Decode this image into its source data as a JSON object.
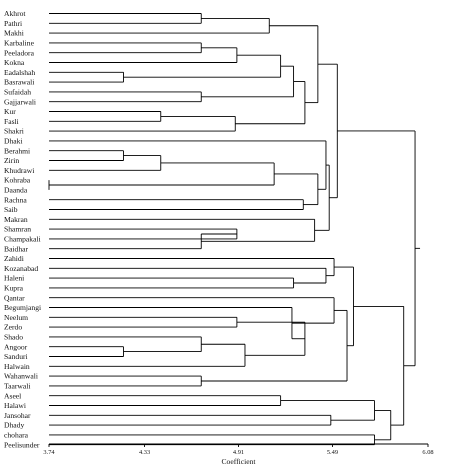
{
  "chart_data": {
    "type": "dendrogram",
    "orientation": "horizontal",
    "xlabel": "Coefficient",
    "xlim": [
      3.74,
      6.08
    ],
    "x_ticks": [
      3.74,
      4.33,
      4.91,
      5.49,
      6.08
    ],
    "x_tick_labels": [
      "3.74",
      "4.33",
      "4.91",
      "5.49",
      "6.08"
    ],
    "leaves": [
      "Akhrot",
      "Pathri",
      "Makhi",
      "Karbaline",
      "Peeladora",
      "Kokna",
      "Eadalshah",
      "Basrawali",
      "Sufaidah",
      "Gajjarwali",
      "Kur",
      "Fasli",
      "Shakri",
      "Dhaki",
      "Berahmi",
      "Zirin",
      "Khudrawi",
      "Kohraba",
      "Daanda",
      "Rachna",
      "Saib",
      "Makran",
      "Shamran",
      "Champakali",
      "Baidhar",
      "Zahidi",
      "Kozanabad",
      "Haleni",
      "Kupra",
      "Qantar",
      "Begumjangi",
      "Neelum",
      "Zerdo",
      "Shado",
      "Angoor",
      "Sanduri",
      "Halwain",
      "Wahanwali",
      "Taarwali",
      "Aseel",
      "Halawi",
      "Jansohar",
      "Dhady",
      "chohara",
      "Peelisunder"
    ],
    "merges": [
      {
        "id": "m1",
        "children": [
          "Akhrot",
          "Pathri"
        ],
        "height": 4.68
      },
      {
        "id": "m2",
        "children": [
          "m1",
          "Makhi"
        ],
        "height": 5.1
      },
      {
        "id": "m3",
        "children": [
          "Karbaline",
          "Peeladora"
        ],
        "height": 4.68
      },
      {
        "id": "m4",
        "children": [
          "m3",
          "Kokna"
        ],
        "height": 4.9
      },
      {
        "id": "m5",
        "children": [
          "Eadalshah",
          "Basrawali"
        ],
        "height": 4.2
      },
      {
        "id": "m6",
        "children": [
          "m4",
          "m5"
        ],
        "height": 5.17
      },
      {
        "id": "m7",
        "children": [
          "Sufaidah",
          "Gajjarwali"
        ],
        "height": 4.68
      },
      {
        "id": "m8",
        "children": [
          "m6",
          "m7"
        ],
        "height": 5.25
      },
      {
        "id": "m9",
        "children": [
          "Kur",
          "Fasli"
        ],
        "height": 4.43
      },
      {
        "id": "m10",
        "children": [
          "m9",
          "Shakri"
        ],
        "height": 4.89
      },
      {
        "id": "m11",
        "children": [
          "m8",
          "m10"
        ],
        "height": 5.32
      },
      {
        "id": "m12",
        "children": [
          "m2",
          "m11"
        ],
        "height": 5.4
      },
      {
        "id": "m13",
        "children": [
          "Berahmi",
          "Zirin"
        ],
        "height": 4.2
      },
      {
        "id": "m14",
        "children": [
          "m13",
          "Khudrawi"
        ],
        "height": 4.43
      },
      {
        "id": "m15",
        "children": [
          "Kohraba",
          "Daanda"
        ],
        "height": 3.74
      },
      {
        "id": "m16",
        "children": [
          "m14",
          "m15"
        ],
        "height": 5.13
      },
      {
        "id": "m17",
        "children": [
          "Rachna",
          "Saib"
        ],
        "height": 5.31
      },
      {
        "id": "m18",
        "children": [
          "m16",
          "m17"
        ],
        "height": 5.4
      },
      {
        "id": "m19",
        "children": [
          "Dhaki",
          "m18"
        ],
        "height": 5.45
      },
      {
        "id": "m20",
        "children": [
          "Shamran",
          "Champakali"
        ],
        "height": 4.9
      },
      {
        "id": "m21",
        "children": [
          "m20",
          "Baidhar"
        ],
        "height": 4.68
      },
      {
        "id": "m22",
        "children": [
          "Makran",
          "m21"
        ],
        "height": 5.38
      },
      {
        "id": "m23",
        "children": [
          "m19",
          "m22"
        ],
        "height": 5.47
      },
      {
        "id": "m24",
        "children": [
          "m12",
          "m23"
        ],
        "height": 5.52
      },
      {
        "id": "m25",
        "children": [
          "Haleni",
          "Kupra"
        ],
        "height": 5.25
      },
      {
        "id": "m26",
        "children": [
          "Kozanabad",
          "m25"
        ],
        "height": 5.45
      },
      {
        "id": "m27",
        "children": [
          "Zahidi",
          "m26"
        ],
        "height": 5.5
      },
      {
        "id": "m28",
        "children": [
          "Neelum",
          "Zerdo"
        ],
        "height": 4.9
      },
      {
        "id": "m29",
        "children": [
          "Angoor",
          "Sanduri"
        ],
        "height": 4.2
      },
      {
        "id": "m30",
        "children": [
          "Shado",
          "m29"
        ],
        "height": 4.68
      },
      {
        "id": "m31",
        "children": [
          "m30",
          "Halwain"
        ],
        "height": 4.95
      },
      {
        "id": "m32",
        "children": [
          "m28",
          "m31"
        ],
        "height": 5.32
      },
      {
        "id": "m33",
        "children": [
          "Begumjangi",
          "m32"
        ],
        "height": 5.24
      },
      {
        "id": "m34",
        "children": [
          "Qantar",
          "m33"
        ],
        "height": 5.5
      },
      {
        "id": "m35",
        "children": [
          "Wahanwali",
          "Taarwali"
        ],
        "height": 4.68
      },
      {
        "id": "m36",
        "children": [
          "m34",
          "m35"
        ],
        "height": 5.58
      },
      {
        "id": "m37",
        "children": [
          "m27",
          "m36"
        ],
        "height": 5.62
      },
      {
        "id": "m38",
        "children": [
          "Aseel",
          "Halawi"
        ],
        "height": 5.17
      },
      {
        "id": "m39",
        "children": [
          "Jansohar",
          "Dhady"
        ],
        "height": 5.48
      },
      {
        "id": "m40",
        "children": [
          "m38",
          "m39"
        ],
        "height": 5.75
      },
      {
        "id": "m41",
        "children": [
          "chohara",
          "Peelisunder"
        ],
        "height": 5.75
      },
      {
        "id": "m42",
        "children": [
          "m40",
          "m41"
        ],
        "height": 5.85
      },
      {
        "id": "m43",
        "children": [
          "m37",
          "m42"
        ],
        "height": 5.93
      },
      {
        "id": "m44",
        "children": [
          "m24",
          "m43"
        ],
        "height": 6.0
      }
    ]
  }
}
